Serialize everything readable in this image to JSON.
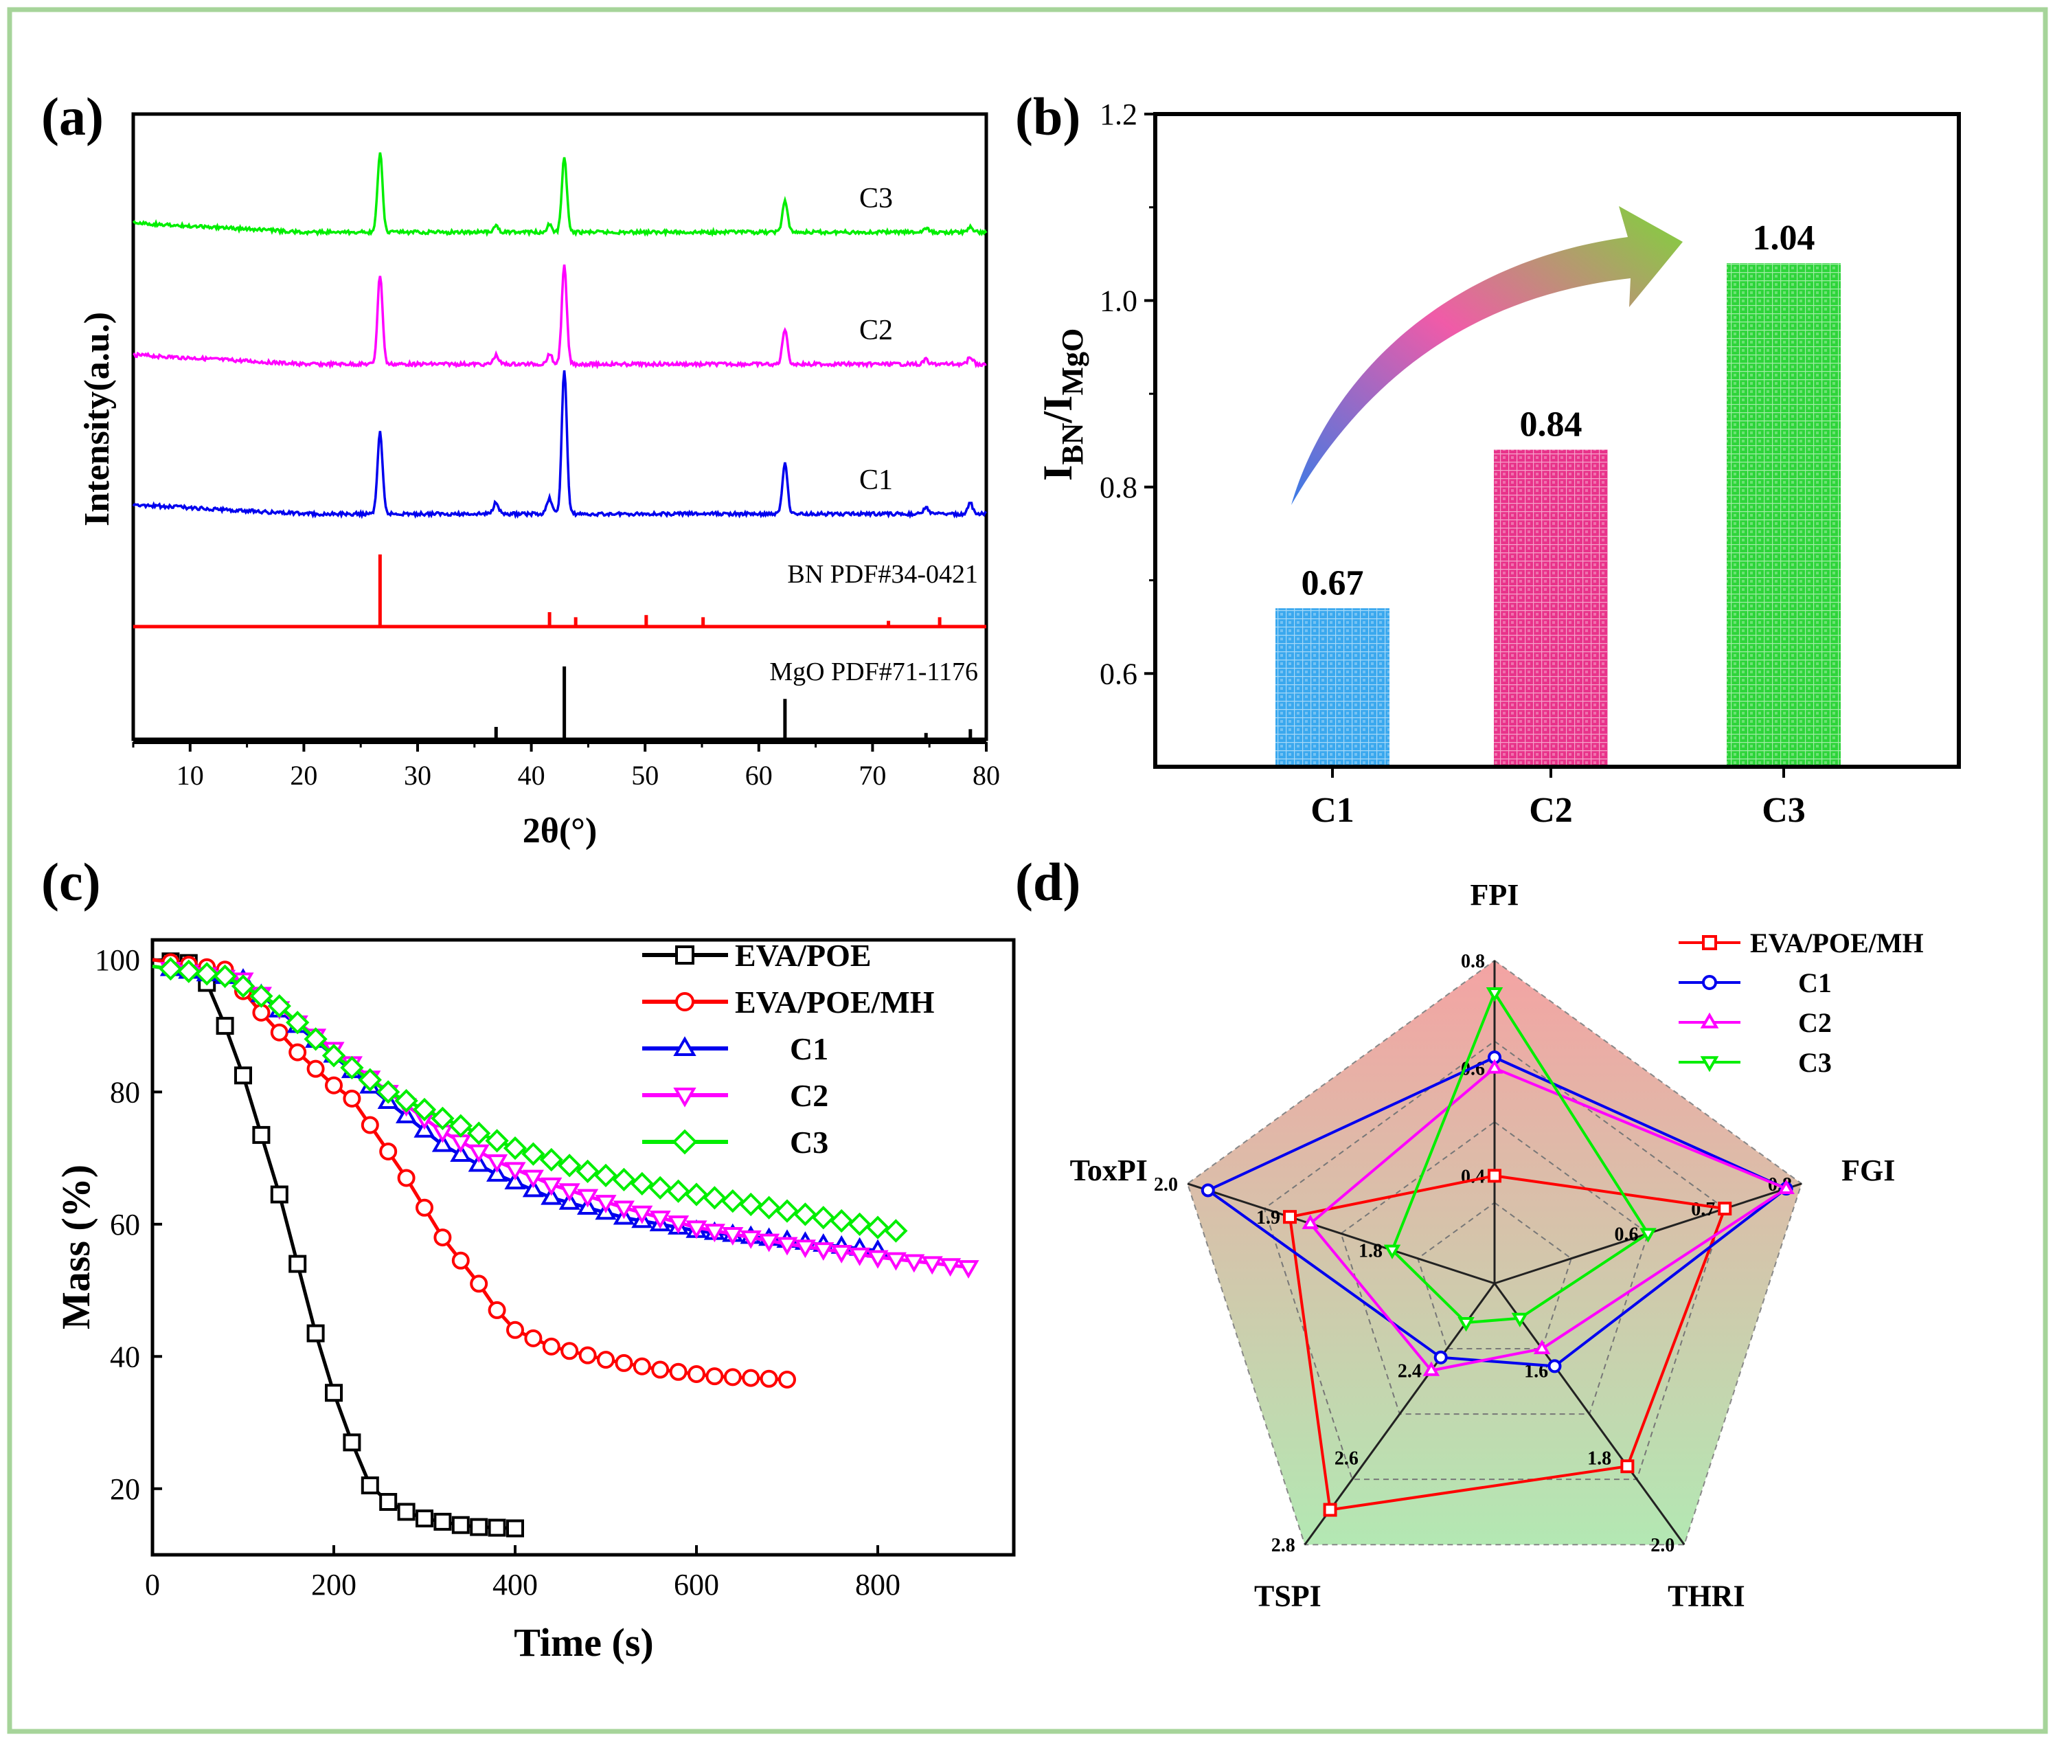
{
  "colors": {
    "frame": "#a6d49a",
    "black": "#000000",
    "red": "#ff0000",
    "blue": "#0000ee",
    "magenta": "#ff00ff",
    "green": "#00ee00",
    "c1_bar": "#3aa8ee",
    "c2_bar": "#e8338a",
    "c3_bar": "#2ed43a",
    "radar_top": "#f2a6a6",
    "radar_bottom": "#b4e8b4"
  },
  "panels": {
    "a": {
      "label": "(a)"
    },
    "b": {
      "label": "(b)"
    },
    "c": {
      "label": "(c)"
    },
    "d": {
      "label": "(d)"
    }
  },
  "chart_data": [
    {
      "id": "a",
      "type": "line",
      "title": "",
      "xlabel": "2θ(°)",
      "ylabel": "Intensity(a.u.)",
      "xlim": [
        5,
        80
      ],
      "xticks": [
        10,
        20,
        30,
        40,
        50,
        60,
        70,
        80
      ],
      "curves": [
        {
          "name": "C3",
          "color": "#00ee00",
          "offset": 74,
          "peaks": [
            [
              26.7,
              100
            ],
            [
              36.9,
              8
            ],
            [
              41.6,
              10
            ],
            [
              42.9,
              95
            ],
            [
              62.3,
              40
            ],
            [
              74.7,
              5
            ],
            [
              78.6,
              7
            ]
          ]
        },
        {
          "name": "C2",
          "color": "#ff00ff",
          "offset": 56,
          "peaks": [
            [
              26.7,
              100
            ],
            [
              36.9,
              10
            ],
            [
              41.6,
              12
            ],
            [
              42.9,
              110
            ],
            [
              62.3,
              40
            ],
            [
              74.7,
              5
            ],
            [
              78.6,
              8
            ]
          ]
        },
        {
          "name": "C1",
          "color": "#0000ee",
          "offset": 35,
          "peaks": [
            [
              26.7,
              80
            ],
            [
              36.9,
              12
            ],
            [
              41.6,
              15
            ],
            [
              42.9,
              140
            ],
            [
              62.3,
              50
            ],
            [
              74.7,
              6
            ],
            [
              78.6,
              10
            ]
          ]
        }
      ],
      "reference_patterns": [
        {
          "name": "BN PDF#34-0421",
          "color": "#ff0000",
          "offset": 20,
          "sticks": [
            [
              26.7,
              100
            ],
            [
              41.6,
              20
            ],
            [
              43.9,
              13
            ],
            [
              50.1,
              16
            ],
            [
              55.1,
              13
            ],
            [
              71.4,
              8
            ],
            [
              75.9,
              13
            ]
          ]
        },
        {
          "name": "MgO PDF#71-1176",
          "color": "#000000",
          "offset": 0,
          "sticks": [
            [
              36.9,
              20
            ],
            [
              42.9,
              100
            ],
            [
              62.3,
              57
            ],
            [
              74.7,
              12
            ],
            [
              78.6,
              17
            ]
          ]
        }
      ]
    },
    {
      "id": "b",
      "type": "bar",
      "title": "",
      "xlabel": "",
      "ylabel": "I_BN/I_MgO",
      "ylabel_main": "I",
      "ylabel_sub1": "BN",
      "ylabel_mid": "/I",
      "ylabel_sub2": "MgO",
      "ylim": [
        0.5,
        1.2
      ],
      "yticks": [
        "0.6",
        "0.8",
        "1.0",
        "1.2"
      ],
      "categories": [
        "C1",
        "C2",
        "C3"
      ],
      "values": [
        0.67,
        0.84,
        1.04
      ],
      "value_labels": [
        "0.67",
        "0.84",
        "1.04"
      ]
    },
    {
      "id": "c",
      "type": "line",
      "title": "",
      "xlabel": "Time (s)",
      "ylabel": "Mass (%)",
      "xlim": [
        0,
        950
      ],
      "ylim": [
        10,
        103
      ],
      "xticks": [
        0,
        200,
        400,
        600,
        800
      ],
      "yticks": [
        20,
        40,
        60,
        80,
        100
      ],
      "series": [
        {
          "name": "EVA/POE",
          "color": "#000000",
          "marker": "square",
          "marker_every": 20,
          "x": [
            0,
            40,
            60,
            80,
            100,
            120,
            140,
            160,
            180,
            200,
            220,
            240,
            260,
            280,
            300,
            320,
            340,
            360,
            380,
            400
          ],
          "y": [
            100,
            99.5,
            96.5,
            90,
            82.5,
            73.5,
            64.5,
            54,
            43.5,
            34.5,
            27,
            20.5,
            18,
            16.5,
            15.5,
            15,
            14.5,
            14.2,
            14.1,
            14
          ]
        },
        {
          "name": "EVA/POE/MH",
          "color": "#ff0000",
          "marker": "circle",
          "marker_every": 20,
          "x": [
            0,
            80,
            120,
            160,
            180,
            200,
            220,
            240,
            260,
            280,
            300,
            320,
            340,
            360,
            380,
            400,
            440,
            500,
            560,
            620,
            700
          ],
          "y": [
            100,
            98.5,
            92,
            86,
            83.5,
            81,
            79,
            75,
            71,
            67,
            62.5,
            58,
            54.5,
            51,
            47,
            44,
            41.5,
            39.5,
            38,
            37,
            36.5
          ]
        },
        {
          "name": "C1",
          "color": "#0000ee",
          "marker": "triangle-up",
          "marker_every": 20,
          "x": [
            0,
            100,
            160,
            200,
            260,
            320,
            380,
            440,
            520,
            600,
            700,
            800
          ],
          "y": [
            99,
            97,
            90,
            85.5,
            78.5,
            72,
            67.5,
            64,
            61,
            59,
            57.5,
            56
          ]
        },
        {
          "name": "C2",
          "color": "#ff00ff",
          "marker": "triangle-down",
          "marker_every": 20,
          "x": [
            0,
            100,
            160,
            200,
            260,
            320,
            380,
            440,
            520,
            600,
            700,
            800,
            900
          ],
          "y": [
            99,
            97,
            90.5,
            86.5,
            80,
            74,
            69.5,
            66,
            62.5,
            59.5,
            57,
            55,
            53.5
          ]
        },
        {
          "name": "C3",
          "color": "#00ee00",
          "marker": "diamond",
          "marker_every": 20,
          "x": [
            0,
            80,
            140,
            200,
            260,
            320,
            400,
            480,
            560,
            640,
            720,
            820
          ],
          "y": [
            99,
            97.5,
            93,
            85.5,
            80,
            76,
            71.5,
            68,
            65.5,
            63.5,
            61.5,
            59
          ]
        }
      ]
    },
    {
      "id": "d",
      "type": "radar",
      "title": "",
      "axes": [
        {
          "name": "FPI",
          "min": 0.2,
          "max": 0.8,
          "ticks": [
            "0.4",
            "0.6",
            "0.8"
          ],
          "tick_values": [
            0.4,
            0.6,
            0.8
          ]
        },
        {
          "name": "FGI",
          "min": 0.4,
          "max": 0.8,
          "ticks": [
            "0.6",
            "0.7",
            "0.8"
          ],
          "tick_values": [
            0.6,
            0.7,
            0.8
          ]
        },
        {
          "name": "THRI",
          "min": 1.4,
          "max": 2.0,
          "ticks": [
            "1.6",
            "1.8",
            "2.0"
          ],
          "tick_values": [
            1.6,
            1.8,
            2.0
          ]
        },
        {
          "name": "TSPI",
          "min": 2.2,
          "max": 2.8,
          "ticks": [
            "2.4",
            "2.6",
            "2.8"
          ],
          "tick_values": [
            2.4,
            2.6,
            2.8
          ]
        },
        {
          "name": "ToxPI",
          "min": 1.7,
          "max": 2.0,
          "ticks": [
            "1.8",
            "1.9",
            "2.0"
          ],
          "tick_values": [
            1.8,
            1.9,
            2.0
          ]
        }
      ],
      "series": [
        {
          "name": "EVA/POE/MH",
          "color": "#ff0000",
          "marker": "square",
          "values": [
            0.4,
            0.7,
            1.82,
            2.72,
            1.9
          ]
        },
        {
          "name": "C1",
          "color": "#0000ee",
          "marker": "circle",
          "values": [
            0.62,
            0.78,
            1.59,
            2.37,
            1.98
          ]
        },
        {
          "name": "C2",
          "color": "#ff00ff",
          "marker": "triangle-up",
          "values": [
            0.6,
            0.78,
            1.55,
            2.4,
            1.88
          ]
        },
        {
          "name": "C3",
          "color": "#00ee00",
          "marker": "triangle-down",
          "values": [
            0.74,
            0.6,
            1.48,
            2.29,
            1.8
          ]
        }
      ]
    }
  ]
}
